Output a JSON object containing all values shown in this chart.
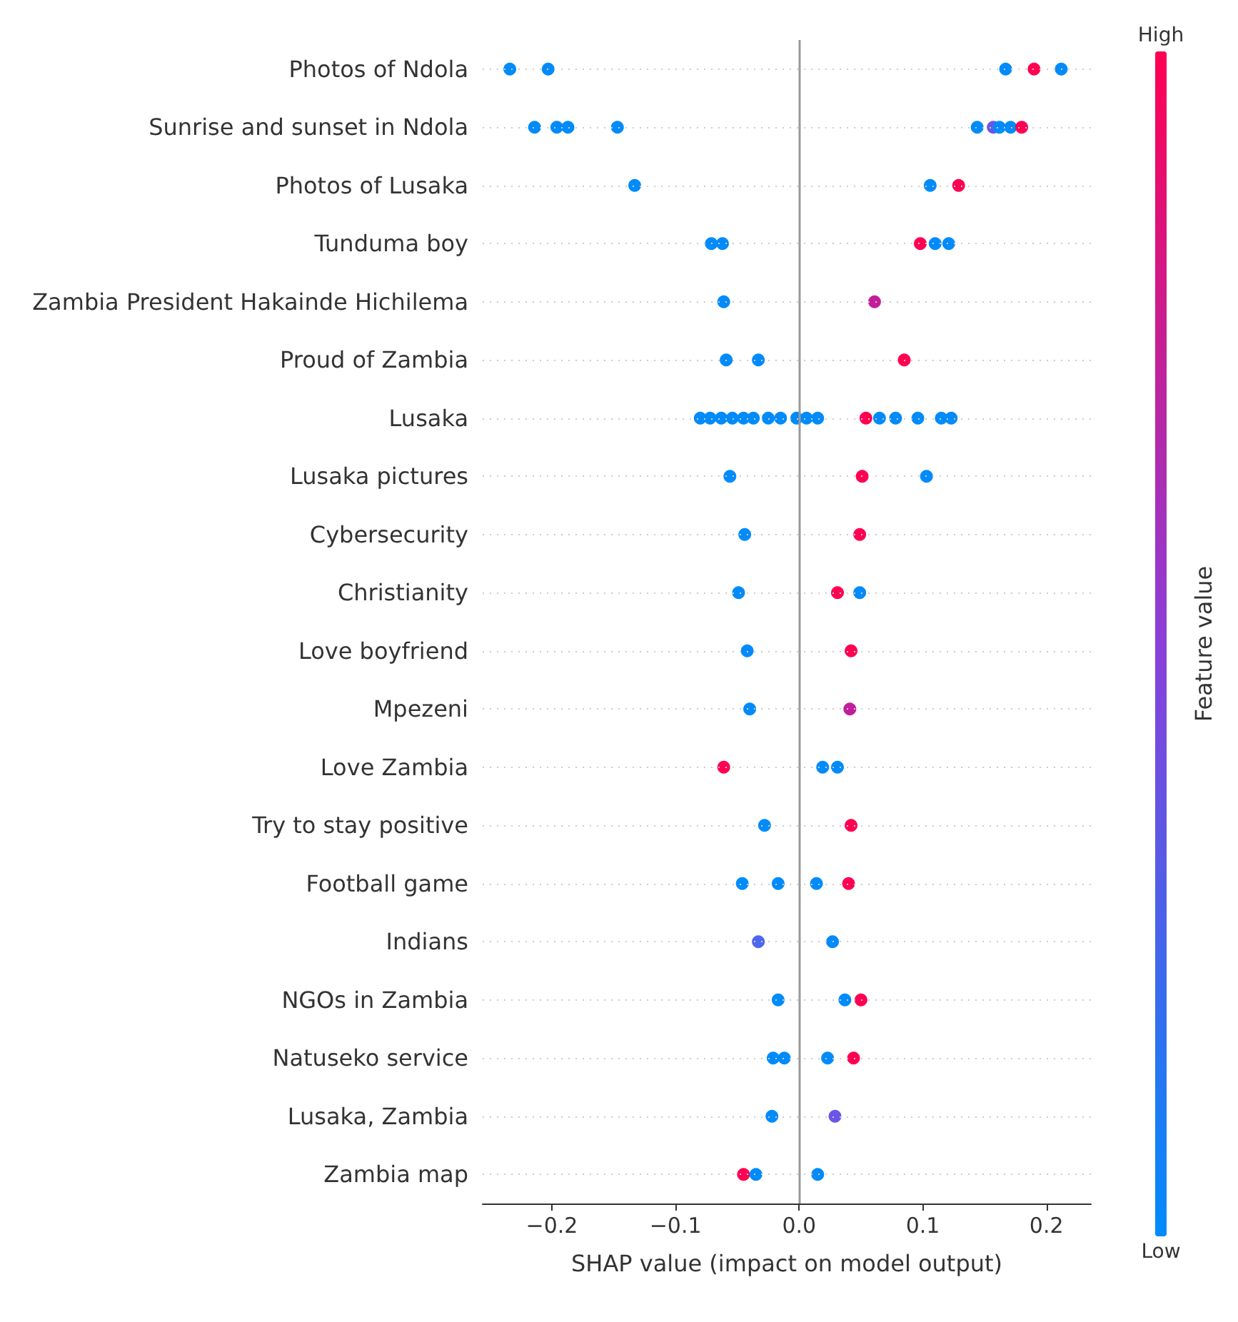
{
  "chart_data": {
    "type": "scatter",
    "orientation": "horizontal",
    "marker": "circle",
    "grid": "y",
    "xlabel": "SHAP value (impact on model output)",
    "clabel": "Feature value",
    "annotations": [
      "High",
      "Low"
    ],
    "xlim": [
      -0.256,
      0.236
    ],
    "xticks": [
      {
        "value": -0.2,
        "label": "−0.2"
      },
      {
        "value": -0.1,
        "label": "−0.1"
      },
      {
        "value": 0,
        "label": "0.0"
      },
      0.1,
      0.2
    ],
    "ref_lines": [
      {
        "axis": "x",
        "value": 0,
        "color": "#999999"
      }
    ],
    "categories": [
      "Photos of Ndola",
      "Sunrise and sunset in Ndola",
      "Photos of Lusaka",
      "Tunduma boy",
      "Zambia President Hakainde Hichilema",
      "Proud of Zambia",
      "Lusaka",
      "Lusaka pictures",
      "Cybersecurity",
      "Christianity",
      "Love boyfriend",
      "Mpezeni",
      "Love Zambia",
      "Try to stay positive",
      "Football game",
      "Indians",
      "NGOs in Zambia",
      "Natuseko service",
      "Lusaka, Zambia",
      "Zambia map"
    ],
    "series": [
      {
        "values": [
          -0.234,
          -0.214,
          -0.133,
          -0.071,
          -0.061,
          -0.059,
          -0.08,
          -0.056,
          -0.044,
          -0.049,
          -0.042,
          -0.04,
          -0.061,
          -0.028,
          -0.046,
          -0.033,
          -0.017,
          -0.021,
          -0.022,
          -0.045
        ],
        "colors": [
          "#008bfb",
          "#008bfb",
          "#008bfb",
          "#008bfb",
          "#008bfb",
          "#008bfb",
          "#008bfb",
          "#008bfb",
          "#008bfb",
          "#008bfb",
          "#008bfb",
          "#008bfb",
          "#ff0052",
          "#008bfb",
          "#008bfb",
          "#4f66ee",
          "#008bfb",
          "#008bfb",
          "#008bfb",
          "#ff0052"
        ]
      },
      {
        "values": [
          -0.203,
          -0.196,
          0.106,
          -0.062,
          0.061,
          -0.033,
          -0.072,
          0.051,
          0.049,
          0.031,
          0.042,
          0.041,
          0.019,
          0.042,
          -0.017,
          0.027,
          null,
          -0.012,
          0.029,
          -0.035
        ],
        "colors": [
          "#008bfb",
          "#008bfb",
          "#008bfb",
          "#008bfb",
          "#c21e9c",
          "#008bfb",
          "#008bfb",
          "#ff0052",
          "#ff0052",
          "#ff0052",
          "#ff0052",
          "#c21e9c",
          "#008bfb",
          "#ff0052",
          "#008bfb",
          "#008bfb",
          null,
          "#008bfb",
          "#6a55e8",
          "#008bfb"
        ]
      },
      {
        "values": [
          0.167,
          -0.187,
          0.129,
          0.098,
          null,
          0.085,
          -0.063,
          0.103,
          null,
          0.049,
          null,
          null,
          0.031,
          null,
          0.014,
          null,
          0.037,
          0.023,
          null,
          0.015
        ],
        "colors": [
          "#008bfb",
          "#008bfb",
          "#ff0052",
          "#ff0052",
          null,
          "#ff0052",
          "#008bfb",
          "#008bfb",
          null,
          "#008bfb",
          null,
          null,
          "#008bfb",
          null,
          "#008bfb",
          null,
          "#008bfb",
          "#008bfb",
          null,
          "#008bfb"
        ]
      },
      {
        "values": [
          0.19,
          -0.147,
          null,
          0.11,
          null,
          null,
          -0.054,
          null,
          null,
          null,
          null,
          null,
          null,
          null,
          0.04,
          null,
          0.05,
          0.044,
          null,
          null
        ],
        "colors": [
          "#ff0052",
          "#008bfb",
          null,
          "#008bfb",
          null,
          null,
          "#008bfb",
          null,
          null,
          null,
          null,
          null,
          null,
          null,
          "#ff0052",
          null,
          "#ff0052",
          "#ff0052",
          null,
          null
        ]
      },
      {
        "values": [
          0.212,
          0.144,
          null,
          0.121,
          null,
          null,
          -0.045,
          null,
          null,
          null,
          null,
          null,
          null,
          null,
          null,
          null,
          null,
          null,
          null,
          null
        ],
        "colors": [
          "#008bfb",
          "#008bfb",
          null,
          "#008bfb",
          null,
          null,
          "#008bfb",
          null,
          null,
          null,
          null,
          null,
          null,
          null,
          null,
          null,
          null,
          null,
          null,
          null
        ]
      },
      {
        "values": [
          null,
          0.157,
          null,
          null,
          null,
          null,
          -0.037,
          null,
          null,
          null,
          null,
          null,
          null,
          null,
          null,
          null,
          null,
          null,
          null,
          null
        ],
        "colors": [
          null,
          "#6a55e8",
          null,
          null,
          null,
          null,
          "#008bfb",
          null,
          null,
          null,
          null,
          null,
          null,
          null,
          null,
          null,
          null,
          null,
          null,
          null
        ]
      },
      {
        "values": [
          null,
          0.162,
          null,
          null,
          null,
          null,
          -0.025,
          null,
          null,
          null,
          null,
          null,
          null,
          null,
          null,
          null,
          null,
          null,
          null,
          null
        ],
        "color": "#008bfb"
      },
      {
        "values": [
          null,
          0.171,
          null,
          null,
          null,
          null,
          -0.015,
          null,
          null,
          null,
          null,
          null,
          null,
          null,
          null,
          null,
          null,
          null,
          null,
          null
        ],
        "color": "#008bfb"
      },
      {
        "values": [
          null,
          0.18,
          null,
          null,
          null,
          null,
          -0.002,
          null,
          null,
          null,
          null,
          null,
          null,
          null,
          null,
          null,
          null,
          null,
          null,
          null
        ],
        "colors": [
          null,
          "#ff0052",
          null,
          null,
          null,
          null,
          "#008bfb",
          null,
          null,
          null,
          null,
          null,
          null,
          null,
          null,
          null,
          null,
          null,
          null,
          null
        ]
      },
      {
        "values": [
          null,
          null,
          null,
          null,
          null,
          null,
          0.006,
          null,
          null,
          null,
          null,
          null,
          null,
          null,
          null,
          null,
          null,
          null,
          null,
          null
        ],
        "color": "#008bfb"
      },
      {
        "values": [
          null,
          null,
          null,
          null,
          null,
          null,
          0.015,
          null,
          null,
          null,
          null,
          null,
          null,
          null,
          null,
          null,
          null,
          null,
          null,
          null
        ],
        "color": "#008bfb"
      },
      {
        "values": [
          null,
          null,
          null,
          null,
          null,
          null,
          0.054,
          null,
          null,
          null,
          null,
          null,
          null,
          null,
          null,
          null,
          null,
          null,
          null,
          null
        ],
        "color": "#ff0052"
      },
      {
        "values": [
          null,
          null,
          null,
          null,
          null,
          null,
          0.065,
          null,
          null,
          null,
          null,
          null,
          null,
          null,
          null,
          null,
          null,
          null,
          null,
          null
        ],
        "color": "#008bfb"
      },
      {
        "values": [
          null,
          null,
          null,
          null,
          null,
          null,
          0.078,
          null,
          null,
          null,
          null,
          null,
          null,
          null,
          null,
          null,
          null,
          null,
          null,
          null
        ],
        "color": "#008bfb"
      },
      {
        "values": [
          null,
          null,
          null,
          null,
          null,
          null,
          0.096,
          null,
          null,
          null,
          null,
          null,
          null,
          null,
          null,
          null,
          null,
          null,
          null,
          null
        ],
        "color": "#008bfb"
      },
      {
        "values": [
          null,
          null,
          null,
          null,
          null,
          null,
          0.115,
          null,
          null,
          null,
          null,
          null,
          null,
          null,
          null,
          null,
          null,
          null,
          null,
          null
        ],
        "color": "#008bfb"
      },
      {
        "values": [
          null,
          null,
          null,
          null,
          null,
          null,
          0.123,
          null,
          null,
          null,
          null,
          null,
          null,
          null,
          null,
          null,
          null,
          null,
          null,
          null
        ],
        "color": "#008bfb"
      }
    ]
  }
}
